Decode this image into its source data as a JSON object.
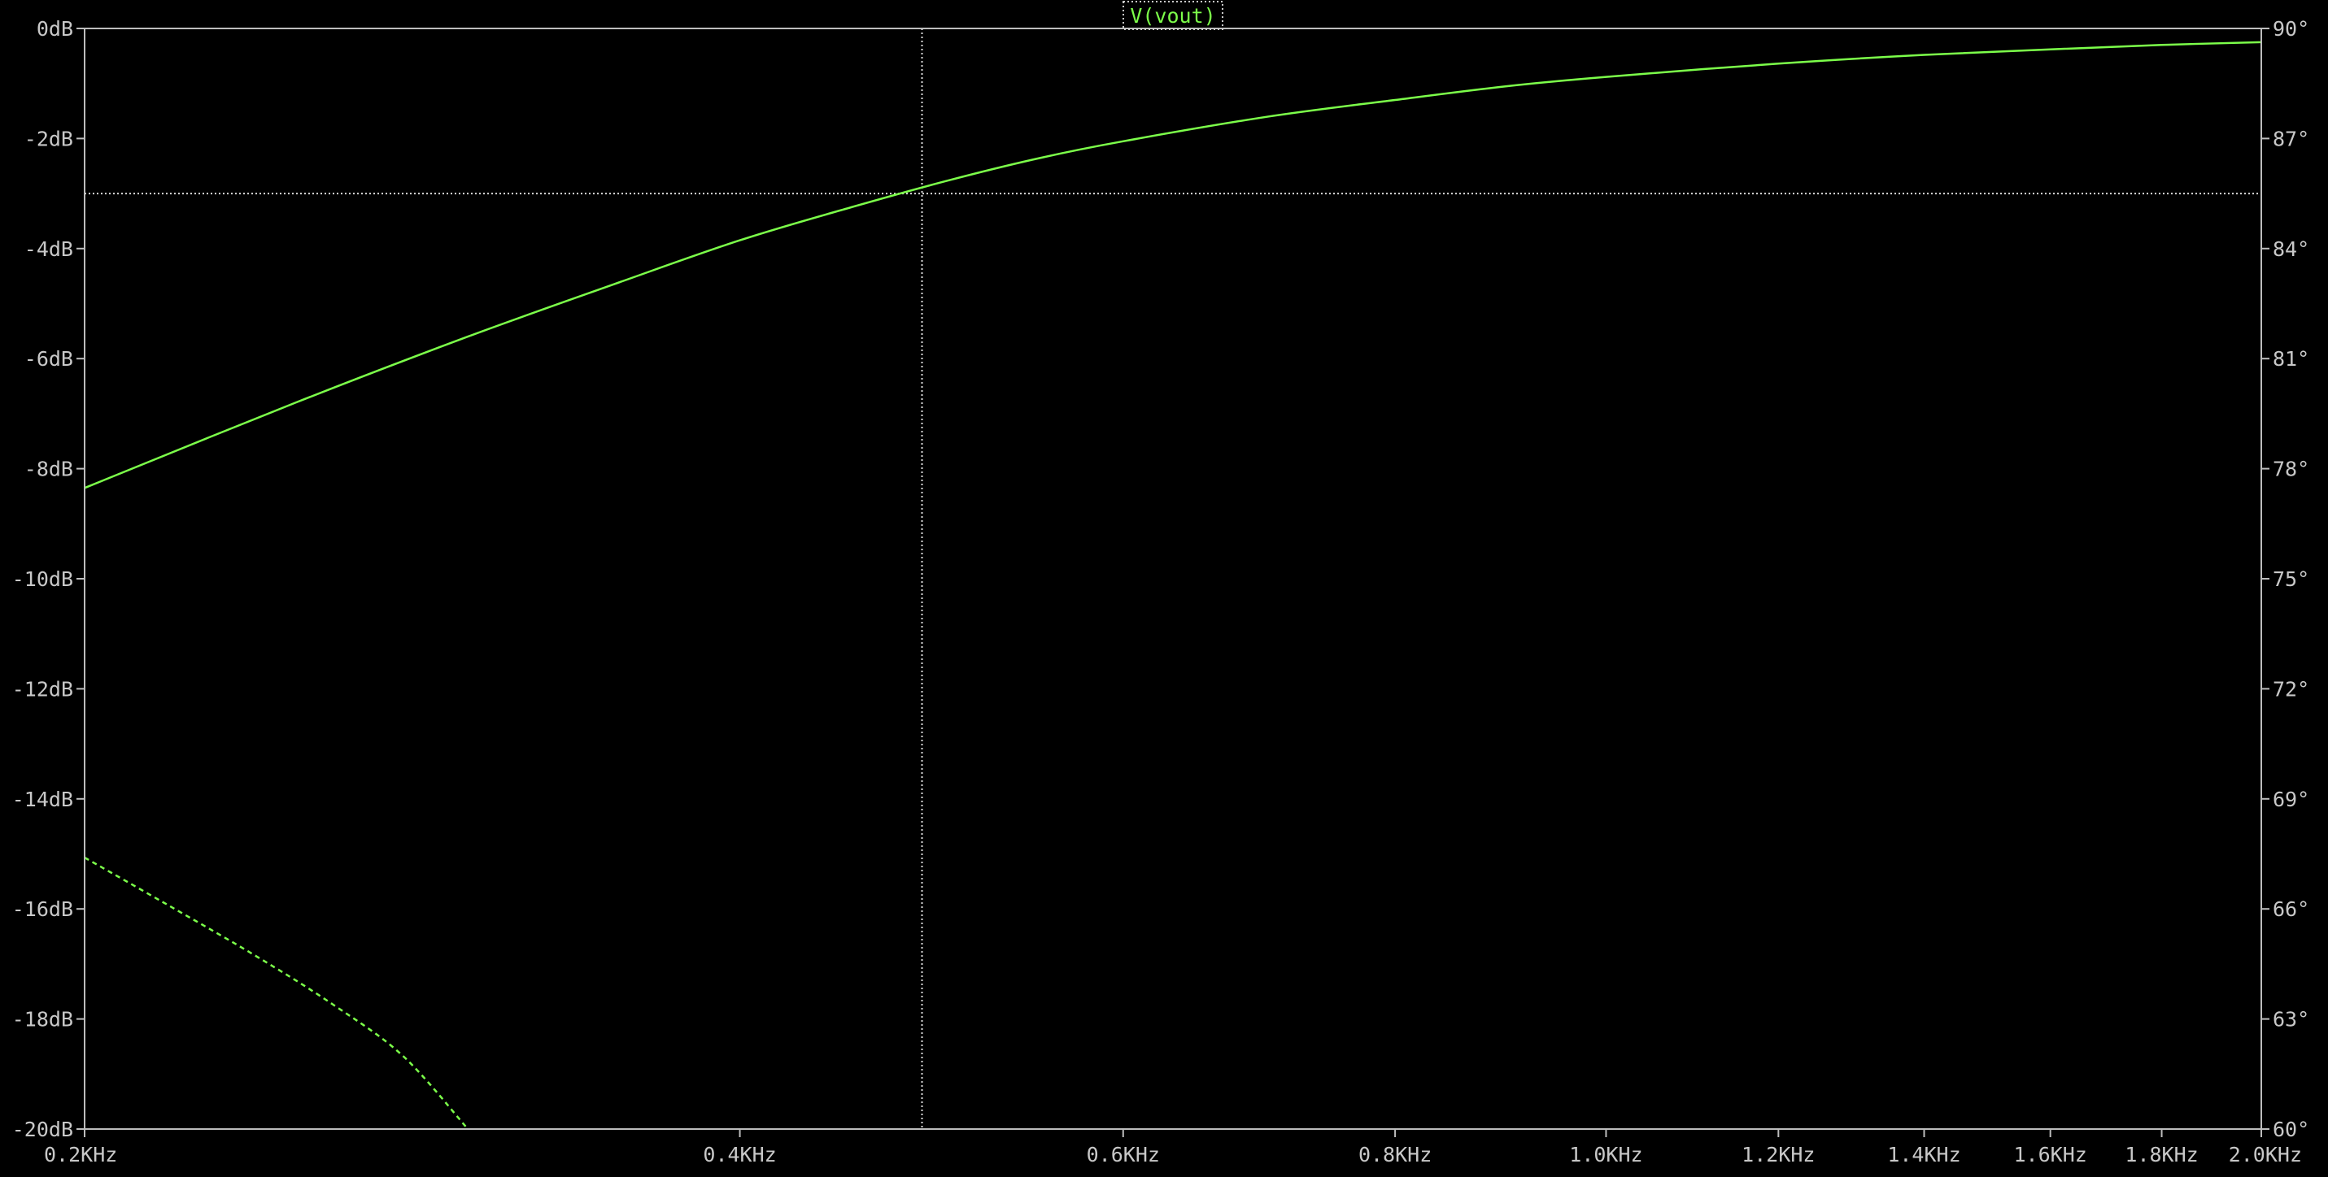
{
  "chart_data": {
    "type": "line",
    "title": "V(vout)",
    "x_scale": "log",
    "x_unit": "Hz",
    "xlim": [
      200,
      2000
    ],
    "x_ticks": [
      {
        "value": 200,
        "label": "0.2KHz"
      },
      {
        "value": 400,
        "label": "0.4KHz"
      },
      {
        "value": 600,
        "label": "0.6KHz"
      },
      {
        "value": 800,
        "label": "0.8KHz"
      },
      {
        "value": 1000,
        "label": "1.0KHz"
      },
      {
        "value": 1200,
        "label": "1.2KHz"
      },
      {
        "value": 1400,
        "label": "1.4KHz"
      },
      {
        "value": 1600,
        "label": "1.6KHz"
      },
      {
        "value": 1800,
        "label": "1.8KHz"
      },
      {
        "value": 2000,
        "label": "2.0KHz"
      }
    ],
    "y_left": {
      "unit": "dB",
      "ylim": [
        -20,
        0
      ],
      "ticks": [
        {
          "value": 0,
          "label": "0dB"
        },
        {
          "value": -2,
          "label": "-2dB"
        },
        {
          "value": -4,
          "label": "-4dB"
        },
        {
          "value": -6,
          "label": "-6dB"
        },
        {
          "value": -8,
          "label": "-8dB"
        },
        {
          "value": -10,
          "label": "-10dB"
        },
        {
          "value": -12,
          "label": "-12dB"
        },
        {
          "value": -14,
          "label": "-14dB"
        },
        {
          "value": -16,
          "label": "-16dB"
        },
        {
          "value": -18,
          "label": "-18dB"
        },
        {
          "value": -20,
          "label": "-20dB"
        }
      ]
    },
    "y_right": {
      "unit": "degrees",
      "ylim": [
        60,
        90
      ],
      "ticks": [
        {
          "value": 90,
          "label": "90°"
        },
        {
          "value": 87,
          "label": "87°"
        },
        {
          "value": 84,
          "label": "84°"
        },
        {
          "value": 81,
          "label": "81°"
        },
        {
          "value": 78,
          "label": "78°"
        },
        {
          "value": 75,
          "label": "75°"
        },
        {
          "value": 72,
          "label": "72°"
        },
        {
          "value": 69,
          "label": "69°"
        },
        {
          "value": 66,
          "label": "66°"
        },
        {
          "value": 63,
          "label": "63°"
        },
        {
          "value": 60,
          "label": "60°"
        }
      ]
    },
    "series": [
      {
        "axis": "left",
        "style": "solid",
        "x": [
          200,
          250,
          300,
          350,
          400,
          450,
          500,
          550,
          600,
          700,
          800,
          900,
          1000,
          1200,
          1400,
          1600,
          1800,
          2000
        ],
        "values": [
          -8.35,
          -6.8,
          -5.6,
          -4.65,
          -3.85,
          -3.25,
          -2.75,
          -2.35,
          -2.05,
          -1.6,
          -1.3,
          -1.05,
          -0.88,
          -0.64,
          -0.48,
          -0.38,
          -0.3,
          -0.25
        ]
      },
      {
        "axis": "right",
        "style": "dashed",
        "x": [
          200,
          220,
          240,
          260,
          280,
          300
        ],
        "values": [
          67.4,
          66.0,
          64.7,
          63.4,
          62.0,
          60.0
        ]
      }
    ],
    "cursor": {
      "x": 485,
      "y": -3
    },
    "grid": false,
    "colors": {
      "trace": "#7cff4a",
      "axis": "#bdbdbd",
      "background": "#000000"
    }
  }
}
